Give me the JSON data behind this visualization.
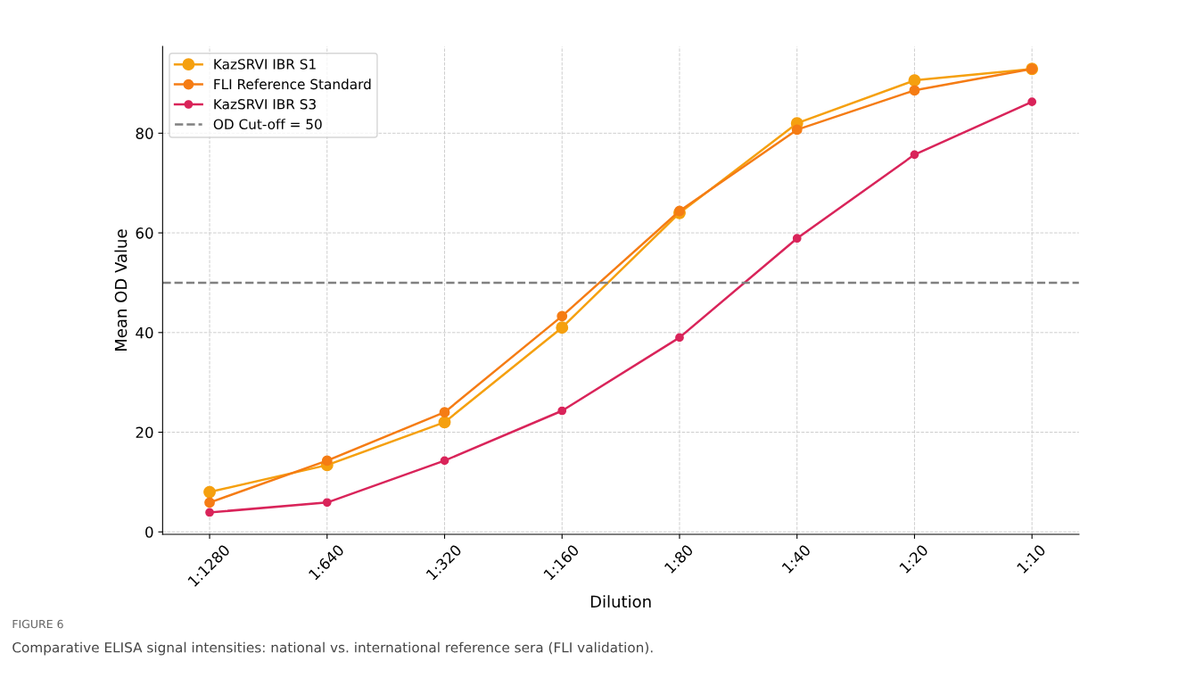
{
  "chart_data": {
    "type": "line",
    "xlabel": "Dilution",
    "ylabel": "Mean OD Value",
    "categories": [
      "1:1280",
      "1:640",
      "1:320",
      "1:160",
      "1:80",
      "1:40",
      "1:20",
      "1:10"
    ],
    "series": [
      {
        "name": "KazSRVI IBR S1",
        "color": "#f5a00f",
        "values": [
          8,
          13.4,
          22,
          41,
          64,
          82,
          90.6,
          92.9
        ]
      },
      {
        "name": "FLI Reference Standard",
        "color": "#f57c14",
        "values": [
          5.9,
          14.3,
          24,
          43.3,
          64.4,
          80.7,
          88.6,
          92.9
        ]
      },
      {
        "name": "KazSRVI IBR S3",
        "color": "#d9245a",
        "values": [
          3.9,
          5.9,
          14.3,
          24.3,
          39,
          58.9,
          75.7,
          86.3
        ]
      }
    ],
    "ref_lines": [
      {
        "axis": "y",
        "value": 50,
        "label": "OD Cut-off = 50",
        "color": "#808080",
        "line_style": "dashed"
      }
    ],
    "ylim": [
      -0.5,
      97.4
    ],
    "yticks": [
      0,
      20,
      40,
      60,
      80
    ],
    "grid": true,
    "legend": "top left",
    "marker": "circle",
    "line_style": "solid",
    "annotations": [
      "FIGURE 6",
      "Comparative ELISA signal intensities: national vs. international reference sera (FLI validation)."
    ]
  }
}
